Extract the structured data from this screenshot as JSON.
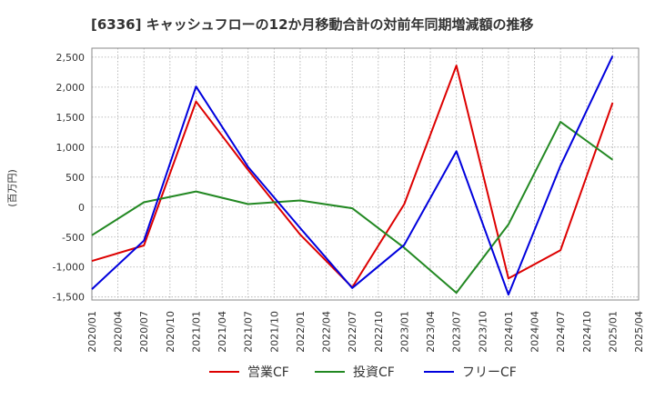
{
  "chart_data": {
    "type": "line",
    "title": "[6336]  キャッシュフローの12か月移動合計の対前年同期増減額の推移",
    "ylabel": "(百万円)",
    "xlabel": "",
    "x": [
      "2020/01",
      "2020/04",
      "2020/07",
      "2020/10",
      "2021/01",
      "2021/04",
      "2021/07",
      "2021/10",
      "2022/01",
      "2022/04",
      "2022/07",
      "2022/10",
      "2023/01",
      "2023/04",
      "2023/07",
      "2023/10",
      "2024/01",
      "2024/04",
      "2024/07",
      "2024/10",
      "2025/01",
      "2025/04"
    ],
    "yticks": [
      "2,500",
      "2,000",
      "1,500",
      "1,000",
      "500",
      "0",
      "-500",
      "-1,000",
      "-1,500"
    ],
    "ytick_values": [
      2500,
      2000,
      1500,
      1000,
      500,
      0,
      -500,
      -1000,
      -1500
    ],
    "ylim": [
      -1550,
      2650
    ],
    "grid": true,
    "legend_position": "bottom",
    "series": [
      {
        "name": "営業CF",
        "color": "#dd0000",
        "points": [
          [
            "2020/01",
            -900
          ],
          [
            "2020/07",
            -640
          ],
          [
            "2021/01",
            1760
          ],
          [
            "2021/07",
            620
          ],
          [
            "2022/01",
            -460
          ],
          [
            "2022/07",
            -1340
          ],
          [
            "2023/01",
            50
          ],
          [
            "2023/07",
            2360
          ],
          [
            "2024/01",
            -1190
          ],
          [
            "2024/07",
            -720
          ],
          [
            "2025/01",
            1740
          ]
        ]
      },
      {
        "name": "投資CF",
        "color": "#228822",
        "points": [
          [
            "2020/01",
            -470
          ],
          [
            "2020/07",
            80
          ],
          [
            "2021/01",
            260
          ],
          [
            "2021/07",
            50
          ],
          [
            "2022/01",
            110
          ],
          [
            "2022/07",
            -20
          ],
          [
            "2023/01",
            -680
          ],
          [
            "2023/07",
            -1430
          ],
          [
            "2024/01",
            -290
          ],
          [
            "2024/07",
            1420
          ],
          [
            "2025/01",
            790
          ]
        ]
      },
      {
        "name": "フリーCF",
        "color": "#0000dd",
        "points": [
          [
            "2020/01",
            -1370
          ],
          [
            "2020/07",
            -560
          ],
          [
            "2021/01",
            2010
          ],
          [
            "2021/07",
            670
          ],
          [
            "2022/01",
            -350
          ],
          [
            "2022/07",
            -1350
          ],
          [
            "2023/01",
            -630
          ],
          [
            "2023/07",
            930
          ],
          [
            "2024/01",
            -1460
          ],
          [
            "2024/07",
            690
          ],
          [
            "2025/01",
            2520
          ]
        ]
      }
    ]
  }
}
